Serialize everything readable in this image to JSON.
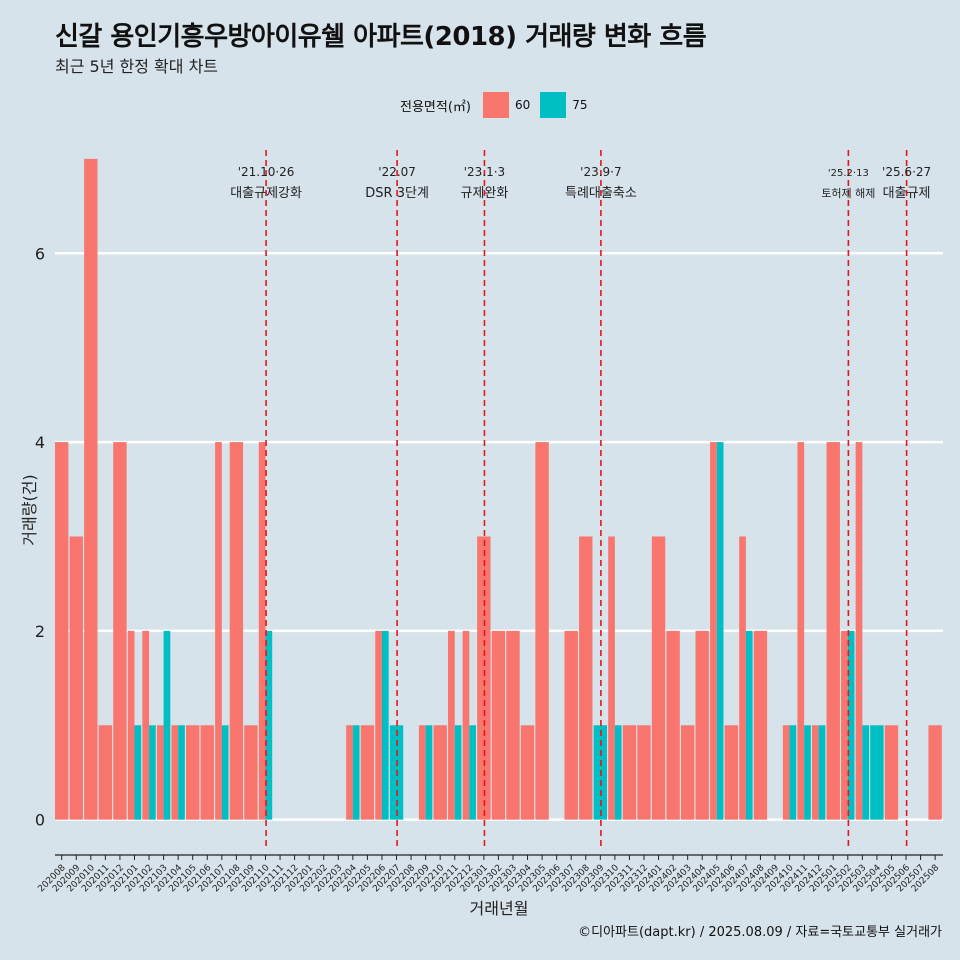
{
  "title": "신갈 용인기흥우방아이유쉘 아파트(2018) 거래량 변화 흐름",
  "subtitle": "최근 5년 한정 확대 차트",
  "caption": "©디아파트(dapt.kr) / 2025.08.09 / 자료=국토교통부 실거래가",
  "legend": {
    "title": "전용면적(㎡)",
    "items": [
      {
        "label": "60",
        "color": "#f8766d"
      },
      {
        "label": "75",
        "color": "#00bfc4"
      }
    ]
  },
  "chart_data": {
    "type": "bar",
    "xlabel": "거래년월",
    "ylabel": "거래량(건)",
    "ylim": [
      -0.3,
      7.2
    ],
    "yticks": [
      0,
      2,
      4,
      6
    ],
    "categories": [
      "202008",
      "202009",
      "202010",
      "202011",
      "202012",
      "202101",
      "202102",
      "202103",
      "202104",
      "202105",
      "202106",
      "202107",
      "202108",
      "202109",
      "202110",
      "202111",
      "202112",
      "202201",
      "202202",
      "202203",
      "202204",
      "202205",
      "202206",
      "202207",
      "202208",
      "202209",
      "202210",
      "202211",
      "202212",
      "202301",
      "202302",
      "202303",
      "202304",
      "202305",
      "202306",
      "202307",
      "202308",
      "202309",
      "202310",
      "202311",
      "202312",
      "202401",
      "202402",
      "202403",
      "202404",
      "202405",
      "202406",
      "202407",
      "202408",
      "202409",
      "202410",
      "202411",
      "202412",
      "202501",
      "202502",
      "202503",
      "202504",
      "202505",
      "202506",
      "202507",
      "202508"
    ],
    "series": [
      {
        "name": "60",
        "color": "#f8766d",
        "values": [
          4,
          3,
          7,
          1,
          4,
          2,
          2,
          1,
          1,
          1,
          1,
          4,
          4,
          1,
          4,
          0,
          0,
          0,
          0,
          0,
          1,
          1,
          2,
          0,
          0,
          1,
          1,
          2,
          2,
          3,
          2,
          2,
          1,
          4,
          0,
          2,
          3,
          0,
          3,
          1,
          1,
          3,
          2,
          1,
          2,
          4,
          1,
          3,
          2,
          0,
          1,
          4,
          1,
          4,
          2,
          4,
          0,
          1,
          0,
          0,
          1
        ],
        "render": "full"
      },
      {
        "name": "75",
        "color": "#00bfc4",
        "values": [
          0,
          0,
          0,
          0,
          0,
          1,
          1,
          2,
          1,
          0,
          0,
          1,
          0,
          0,
          2,
          0,
          0,
          0,
          0,
          0,
          1,
          0,
          2,
          1,
          0,
          1,
          0,
          1,
          1,
          0,
          0,
          0,
          0,
          0,
          0,
          0,
          0,
          1,
          1,
          0,
          0,
          0,
          0,
          0,
          0,
          4,
          0,
          2,
          0,
          0,
          1,
          1,
          1,
          0,
          2,
          1,
          1,
          0,
          0,
          0,
          0
        ],
        "render": "dodge"
      }
    ],
    "events": [
      {
        "date": "'21.10·26",
        "label": "대출규제강화",
        "after": "202110",
        "offset": 0.0
      },
      {
        "date": "'22.07",
        "label": "DSR 3단계",
        "after": "202207",
        "offset": 0.0
      },
      {
        "date": "'23.1·3",
        "label": "규제완화",
        "after": "202301",
        "offset": 0.0
      },
      {
        "date": "'23.9·7",
        "label": "특례대출축소",
        "after": "202309",
        "offset": 0.0
      },
      {
        "date": "'25.2·13",
        "label": "토허제 해제",
        "after": "202502",
        "offset": 0.0,
        "small": true
      },
      {
        "date": "'25.6·27",
        "label": "대출규제",
        "after": "202506",
        "offset": 0.0
      }
    ]
  }
}
